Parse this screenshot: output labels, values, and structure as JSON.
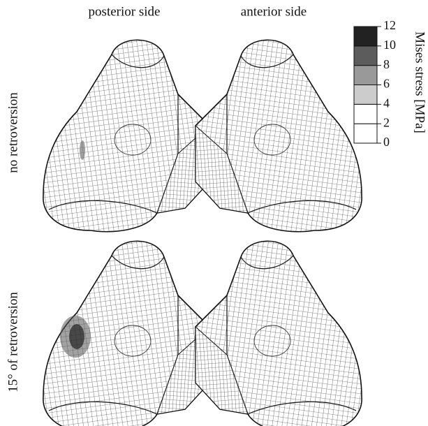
{
  "columns": [
    "posterior side",
    "anterior side"
  ],
  "rows": [
    "no retroversion",
    "15° of retroversion"
  ],
  "legend": {
    "title": "Mises stress [MPa]",
    "ticks": [
      0,
      2,
      4,
      6,
      8,
      10,
      12
    ],
    "colors": [
      "#ffffff",
      "#ffffff",
      "#cccccc",
      "#999999",
      "#5c5c5c",
      "#222222"
    ]
  }
}
